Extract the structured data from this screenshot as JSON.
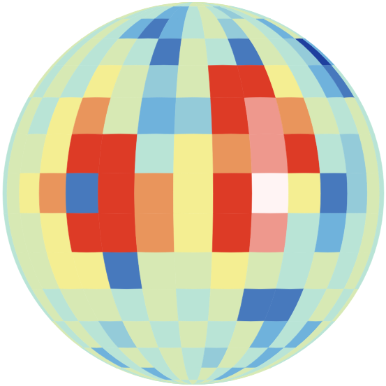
{
  "chart_data": {
    "type": "heatmap",
    "x": [
      -84,
      -72,
      -60,
      -48,
      -36,
      -24,
      -12,
      0,
      12,
      24,
      36,
      48,
      60,
      72,
      84
    ],
    "y": [
      84,
      72,
      60,
      48,
      36,
      24,
      12,
      0,
      -12,
      -24,
      -36,
      -48,
      -60,
      -72,
      -84
    ],
    "xlim": [
      -90,
      90
    ],
    "ylim": [
      -90,
      90
    ],
    "zlim": [
      -2,
      3
    ],
    "tick_labels": false,
    "values": [
      [
        0.5,
        0.5,
        0.5,
        0.5,
        0.5,
        0,
        0,
        0.5,
        0.5,
        0.5,
        0,
        0,
        0.5,
        0.5,
        0.5
      ],
      [
        0.5,
        0.5,
        0,
        0,
        0,
        -1,
        -1,
        0,
        0.5,
        0,
        -0.5,
        0,
        0.5,
        0,
        0
      ],
      [
        0.5,
        0,
        0.5,
        0,
        -1,
        -1.5,
        -1,
        0,
        0.5,
        -0.5,
        0.5,
        0,
        -1,
        0.5,
        0
      ],
      [
        0.5,
        0,
        0.5,
        0,
        0.5,
        0,
        -1.5,
        0.5,
        0,
        -1.5,
        0.5,
        0,
        -0.5,
        -2,
        -1
      ],
      [
        0.5,
        0,
        0.5,
        0,
        1,
        0.5,
        -0.5,
        0.5,
        2,
        2,
        1,
        0,
        -1,
        -1.5,
        0
      ],
      [
        0,
        0.5,
        0,
        1,
        1.5,
        0.5,
        -1,
        -0.5,
        2,
        2.5,
        1.5,
        0.5,
        0,
        0.5,
        0
      ],
      [
        0,
        0.5,
        0.5,
        1,
        2,
        2,
        0,
        1,
        1.5,
        2.5,
        2,
        0,
        -0.5,
        0.5,
        0
      ],
      [
        0,
        0.5,
        1,
        1.5,
        -1.5,
        2,
        1.5,
        1,
        2,
        3,
        1,
        -1.5,
        -0.5,
        0.5,
        0
      ],
      [
        0,
        0.5,
        0.5,
        1,
        2,
        2,
        1.5,
        1,
        2,
        2.5,
        0,
        -1,
        0,
        0.5,
        0
      ],
      [
        0,
        0.5,
        0.5,
        1,
        1,
        -1.5,
        0.5,
        0.5,
        1,
        0.5,
        0,
        0.5,
        0,
        0.5,
        0
      ],
      [
        0,
        0.5,
        0,
        0.5,
        0.5,
        0,
        0.5,
        0,
        0.5,
        -1.5,
        -1.5,
        0,
        0.5,
        0,
        0.5
      ],
      [
        0.5,
        0,
        0.5,
        0,
        -0.5,
        0.5,
        0,
        0.5,
        0,
        0.5,
        -1,
        0,
        -1,
        0.5,
        0
      ],
      [
        0,
        0.5,
        -1,
        0,
        0.5,
        0,
        0.5,
        0,
        -0.5,
        0.5,
        0,
        -1,
        0,
        0.5,
        0
      ],
      [
        0.5,
        0,
        0.5,
        0,
        -1,
        0,
        0.5,
        0,
        0.5,
        0,
        -1,
        0.5,
        0,
        0.5,
        0.5
      ],
      [
        0,
        0.5,
        0,
        0.5,
        0,
        0.5,
        0,
        0.5,
        0,
        0.5,
        0,
        0.5,
        0,
        0.5,
        0
      ]
    ]
  }
}
